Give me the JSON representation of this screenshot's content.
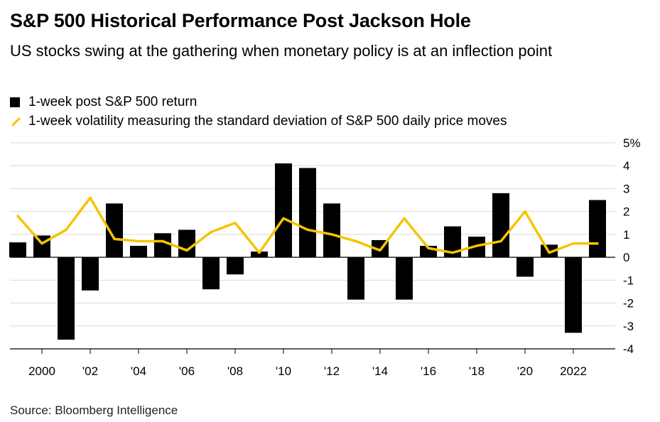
{
  "title": "S&P 500 Historical Performance Post Jackson Hole",
  "subtitle": "US stocks swing at the gathering when monetary policy is at an inflection point",
  "source": "Source: Bloomberg Intelligence",
  "colors": {
    "bar": "#000000",
    "line": "#f5c400",
    "grid": "#d9d9d9"
  },
  "chart_data": {
    "type": "bar",
    "years": [
      1999,
      2000,
      2001,
      2002,
      2003,
      2004,
      2005,
      2006,
      2007,
      2008,
      2009,
      2010,
      2011,
      2012,
      2013,
      2014,
      2015,
      2016,
      2017,
      2018,
      2019,
      2020,
      2021,
      2022,
      2023
    ],
    "series": [
      {
        "name": "1-week post S&P 500 return",
        "type": "bar",
        "values": [
          0.65,
          0.95,
          -3.6,
          -1.45,
          2.35,
          0.5,
          1.05,
          1.2,
          -1.4,
          -0.75,
          0.25,
          4.1,
          3.9,
          2.35,
          -1.85,
          0.75,
          -1.85,
          0.5,
          1.35,
          0.9,
          2.8,
          -0.85,
          0.55,
          -3.3,
          2.5
        ]
      },
      {
        "name": "1-week volatility measuring the standard deviation of S&P 500 daily price moves",
        "type": "line",
        "values": [
          1.8,
          0.6,
          1.2,
          2.6,
          0.8,
          0.7,
          0.7,
          0.3,
          1.1,
          1.5,
          0.2,
          1.7,
          1.2,
          1.0,
          0.7,
          0.3,
          1.7,
          0.4,
          0.2,
          0.5,
          0.7,
          2.0,
          0.2,
          0.6,
          0.6
        ]
      }
    ],
    "ylim": [
      -4,
      5
    ],
    "yticks": [
      5,
      4,
      3,
      2,
      1,
      0,
      -1,
      -2,
      -3,
      -4
    ],
    "ytick_labels": [
      "5%",
      "4",
      "3",
      "2",
      "1",
      "0",
      "-1",
      "-2",
      "-3",
      "-4"
    ],
    "xticks": [
      2000,
      2002,
      2004,
      2006,
      2008,
      2010,
      2012,
      2014,
      2016,
      2018,
      2020,
      2022
    ],
    "xtick_labels": [
      "2000",
      "'02",
      "'04",
      "'06",
      "'08",
      "'10",
      "'12",
      "'14",
      "'16",
      "'18",
      "'20",
      "2022"
    ],
    "grid": true,
    "legend_position": "top-left"
  }
}
